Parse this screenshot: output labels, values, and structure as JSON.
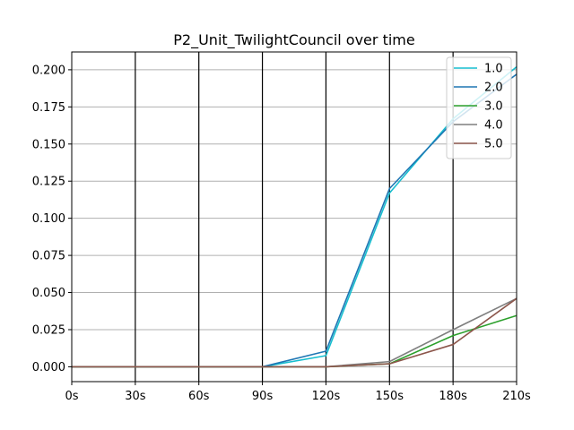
{
  "chart_data": {
    "type": "line",
    "title": "P2_Unit_TwilightCouncil over time",
    "xlabel": "",
    "ylabel": "",
    "x": [
      0,
      30,
      60,
      90,
      120,
      150,
      180,
      210
    ],
    "x_tick_labels": [
      "0s",
      "30s",
      "60s",
      "90s",
      "120s",
      "150s",
      "180s",
      "210s"
    ],
    "xlim": [
      0,
      210
    ],
    "ylim": [
      -0.01,
      0.212
    ],
    "y_ticks": [
      0.0,
      0.025,
      0.05,
      0.075,
      0.1,
      0.125,
      0.15,
      0.175,
      0.2
    ],
    "y_tick_labels": [
      "0.000",
      "0.025",
      "0.050",
      "0.075",
      "0.100",
      "0.125",
      "0.150",
      "0.175",
      "0.200"
    ],
    "grid": "horizontal",
    "vertical_lines": [
      30,
      60,
      90,
      120,
      150,
      180
    ],
    "legend_position": "top-right",
    "series": [
      {
        "name": "1.0",
        "color": "#17becf",
        "values": [
          0,
          0,
          0,
          0,
          0.0075,
          0.117,
          0.167,
          0.202
        ]
      },
      {
        "name": "2.0",
        "color": "#1f77b4",
        "values": [
          0,
          0,
          0,
          0,
          0.0105,
          0.12,
          0.165,
          0.197
        ]
      },
      {
        "name": "3.0",
        "color": "#2ca02c",
        "values": [
          0,
          0,
          0,
          0,
          0,
          0.002,
          0.021,
          0.0345
        ]
      },
      {
        "name": "4.0",
        "color": "#7f7f7f",
        "values": [
          0,
          0,
          0,
          0,
          0,
          0.0035,
          0.025,
          0.046
        ]
      },
      {
        "name": "5.0",
        "color": "#8c564b",
        "values": [
          0,
          0,
          0,
          0,
          0,
          0.002,
          0.015,
          0.046
        ]
      }
    ]
  }
}
